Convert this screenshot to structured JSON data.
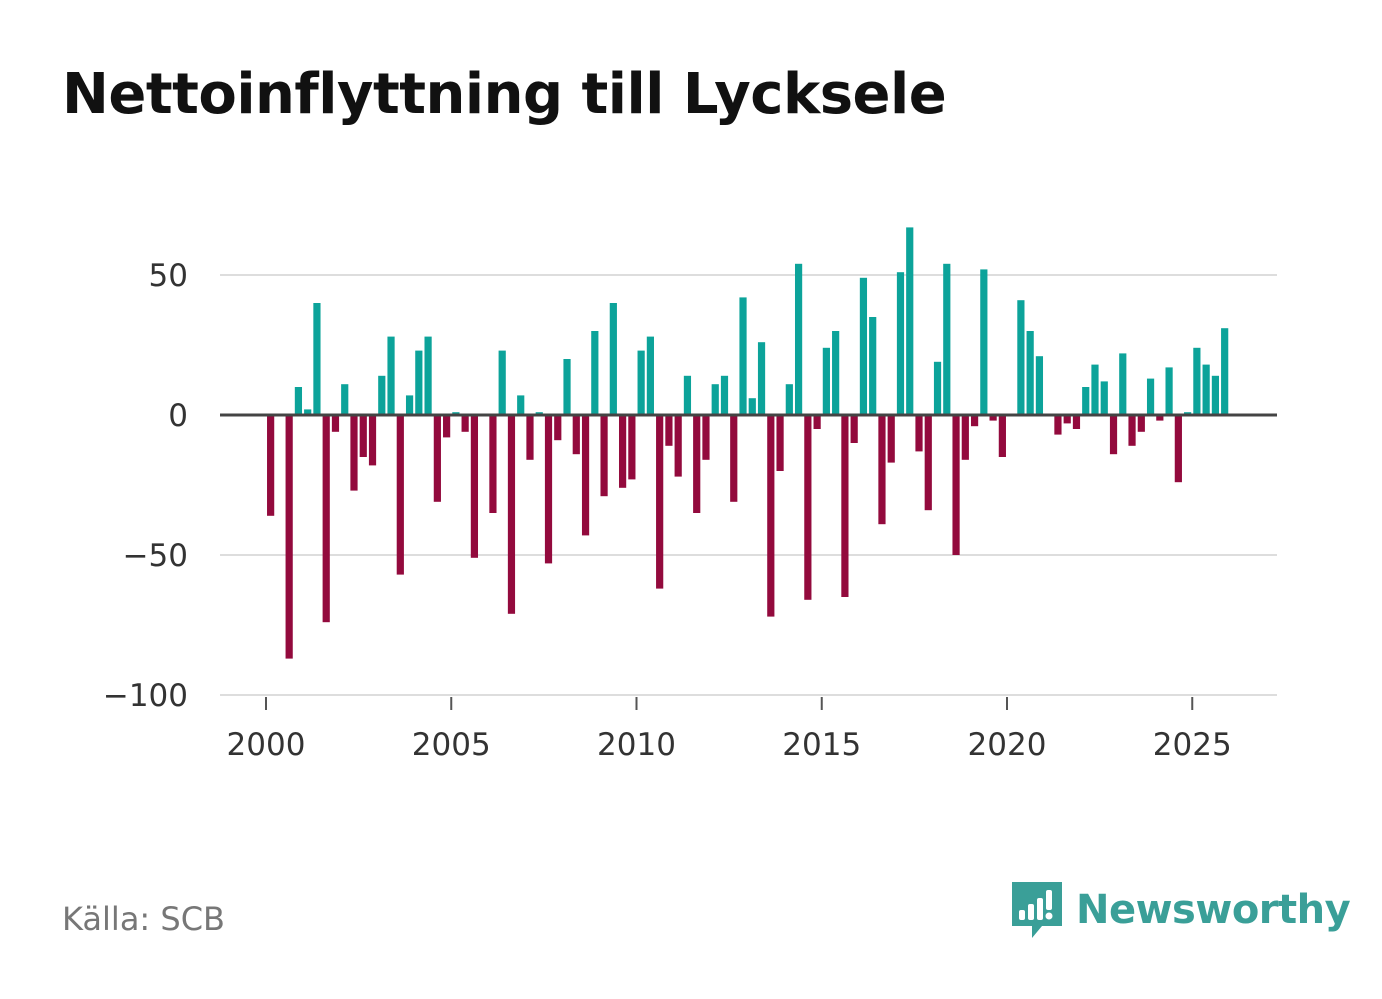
{
  "chart_data": {
    "type": "bar",
    "title": "Nettoinflyttning till Lycksele",
    "xlabel": "",
    "ylabel": "",
    "ylim": [
      -100,
      70
    ],
    "xlim": [
      1999.25,
      2027.3
    ],
    "yticks": [
      50,
      0,
      -50,
      -100
    ],
    "ytick_labels": [
      "50",
      "0",
      "−50",
      "−100"
    ],
    "xticks": [
      2000,
      2005,
      2010,
      2015,
      2020,
      2025
    ],
    "xtick_labels": [
      "2000",
      "2005",
      "2010",
      "2015",
      "2020",
      "2025"
    ],
    "positive_color": "#0ca39a",
    "negative_color": "#930a3d",
    "series": [
      {
        "name": "Nettoinflyttning",
        "x": [
          2000.125,
          2000.375,
          2000.625,
          2000.875,
          2001.125,
          2001.375,
          2001.625,
          2001.875,
          2002.125,
          2002.375,
          2002.625,
          2002.875,
          2003.125,
          2003.375,
          2003.625,
          2003.875,
          2004.125,
          2004.375,
          2004.625,
          2004.875,
          2005.125,
          2005.375,
          2005.625,
          2005.875,
          2006.125,
          2006.375,
          2006.625,
          2006.875,
          2007.125,
          2007.375,
          2007.625,
          2007.875,
          2008.125,
          2008.375,
          2008.625,
          2008.875,
          2009.125,
          2009.375,
          2009.625,
          2009.875,
          2010.125,
          2010.375,
          2010.625,
          2010.875,
          2011.125,
          2011.375,
          2011.625,
          2011.875,
          2012.125,
          2012.375,
          2012.625,
          2012.875,
          2013.125,
          2013.375,
          2013.625,
          2013.875,
          2014.125,
          2014.375,
          2014.625,
          2014.875,
          2015.125,
          2015.375,
          2015.625,
          2015.875,
          2016.125,
          2016.375,
          2016.625,
          2016.875,
          2017.125,
          2017.375,
          2017.625,
          2017.875,
          2018.125,
          2018.375,
          2018.625,
          2018.875,
          2019.125,
          2019.375,
          2019.625,
          2019.875,
          2020.125,
          2020.375,
          2020.625,
          2020.875,
          2021.125,
          2021.375,
          2021.625,
          2021.875,
          2022.125,
          2022.375,
          2022.625,
          2022.875,
          2023.125,
          2023.375,
          2023.625,
          2023.875,
          2024.125,
          2024.375,
          2024.625,
          2024.875,
          2025.125,
          2025.375,
          2025.625,
          2025.875
        ],
        "values": [
          -36,
          0,
          -87,
          10,
          2,
          40,
          -74,
          -6,
          11,
          -27,
          -15,
          -18,
          14,
          28,
          -57,
          7,
          23,
          28,
          -31,
          -8,
          1,
          -6,
          -51,
          0,
          -35,
          23,
          -71,
          7,
          -16,
          1,
          -53,
          -9,
          20,
          -14,
          -43,
          30,
          -29,
          40,
          -26,
          -23,
          23,
          28,
          -62,
          -11,
          -22,
          14,
          -35,
          -16,
          11,
          14,
          -31,
          42,
          6,
          26,
          -72,
          -20,
          11,
          54,
          -66,
          -5,
          24,
          30,
          -65,
          -10,
          49,
          35,
          -39,
          -17,
          51,
          67,
          -13,
          -34,
          19,
          54,
          -50,
          -16,
          -4,
          52,
          -2,
          -15,
          0,
          41,
          30,
          21,
          0,
          -7,
          -3,
          -5,
          10,
          18,
          12,
          -14,
          22,
          -11,
          -6,
          13,
          -2,
          17,
          -24,
          1,
          24,
          18,
          14,
          31
        ]
      }
    ]
  },
  "footer": {
    "source": "Källa: SCB",
    "brand": "Newsworthy"
  },
  "icons": {
    "logo": "newsworthy-logo-icon"
  }
}
